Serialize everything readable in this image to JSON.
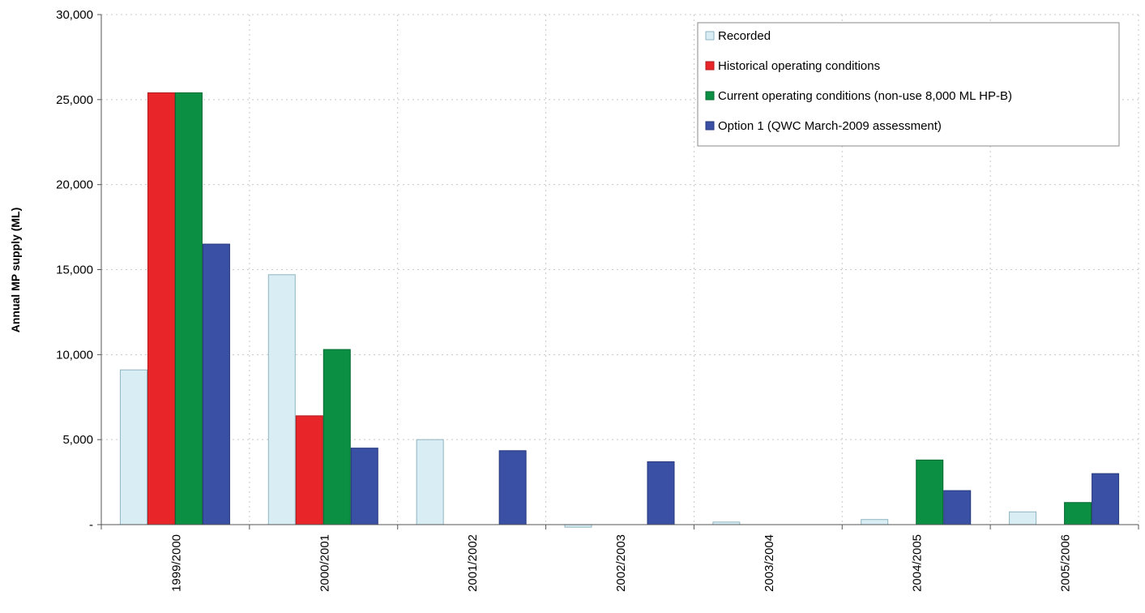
{
  "chart_data": {
    "type": "bar",
    "title": "",
    "xlabel": "",
    "ylabel": "Annual MP supply (ML)",
    "ylim": [
      0,
      30000
    ],
    "yticks": [
      0,
      5000,
      10000,
      15000,
      20000,
      25000,
      30000
    ],
    "ytick_labels": [
      "-",
      "5,000",
      "10,000",
      "15,000",
      "20,000",
      "25,000",
      "30,000"
    ],
    "categories": [
      "1999/2000",
      "2000/2001",
      "2001/2002",
      "2002/2003",
      "2003/2004",
      "2004/2005",
      "2005/2006"
    ],
    "series": [
      {
        "name": "Recorded",
        "color": "#d8eef4",
        "stroke": "#8fb4c0",
        "values": [
          9100,
          14700,
          5000,
          -150,
          150,
          300,
          750
        ]
      },
      {
        "name": "Historical operating conditions",
        "color": "#e8262a",
        "stroke": "#b01c1e",
        "values": [
          25400,
          6400,
          0,
          0,
          0,
          0,
          0
        ]
      },
      {
        "name": "Current operating conditions (non-use 8,000 ML HP-B)",
        "color": "#0a8f43",
        "stroke": "#066a31",
        "values": [
          25400,
          10300,
          0,
          0,
          0,
          3800,
          1300
        ]
      },
      {
        "name": "Option 1 (QWC March-2009 assessment)",
        "color": "#3a50a4",
        "stroke": "#27397d",
        "values": [
          16500,
          4500,
          4350,
          3700,
          0,
          2000,
          3000
        ]
      }
    ],
    "grid": true,
    "legend_position": "top-right"
  }
}
